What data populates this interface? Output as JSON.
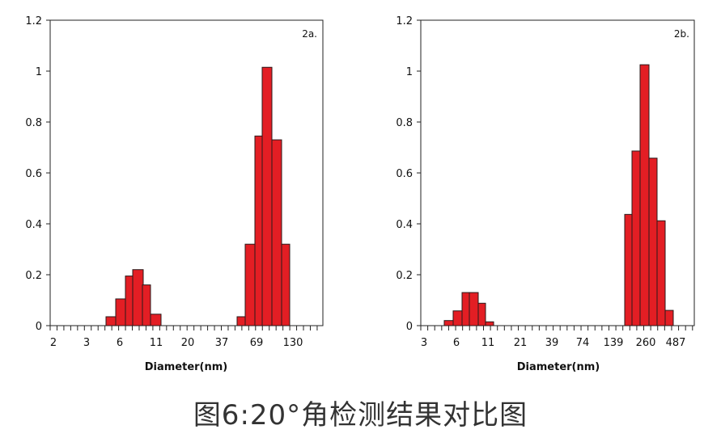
{
  "caption": "图6:20°角检测结果对比图",
  "chart_data": [
    {
      "type": "bar",
      "panel_label": "2a.",
      "xlabel": "Diameter(nm)",
      "ylabel": "",
      "ylim": [
        0,
        1.2
      ],
      "yticks": [
        "0",
        "0.2",
        "0.4",
        "0.6",
        "0.8",
        "1",
        "1.2"
      ],
      "xtick_labels": [
        "2",
        "3",
        "6",
        "11",
        "20",
        "37",
        "69",
        "130"
      ],
      "bar_color": "#e31e24",
      "values": [
        0.035,
        0.105,
        0.195,
        0.22,
        0.16,
        0.045,
        0.035,
        0.32,
        0.745,
        1.015,
        0.73,
        0.32
      ]
    },
    {
      "type": "bar",
      "panel_label": "2b.",
      "xlabel": "Diameter(nm)",
      "ylabel": "",
      "ylim": [
        0,
        1.2
      ],
      "yticks": [
        "0",
        "0.2",
        "0.4",
        "0.6",
        "0.8",
        "1",
        "1.2"
      ],
      "xtick_labels": [
        "3",
        "6",
        "11",
        "21",
        "39",
        "74",
        "139",
        "260",
        "487"
      ],
      "bar_color": "#e31e24",
      "values": [
        0.02,
        0.058,
        0.13,
        0.13,
        0.088,
        0.015,
        0.437,
        0.686,
        1.025,
        0.658,
        0.412,
        0.06
      ]
    }
  ]
}
